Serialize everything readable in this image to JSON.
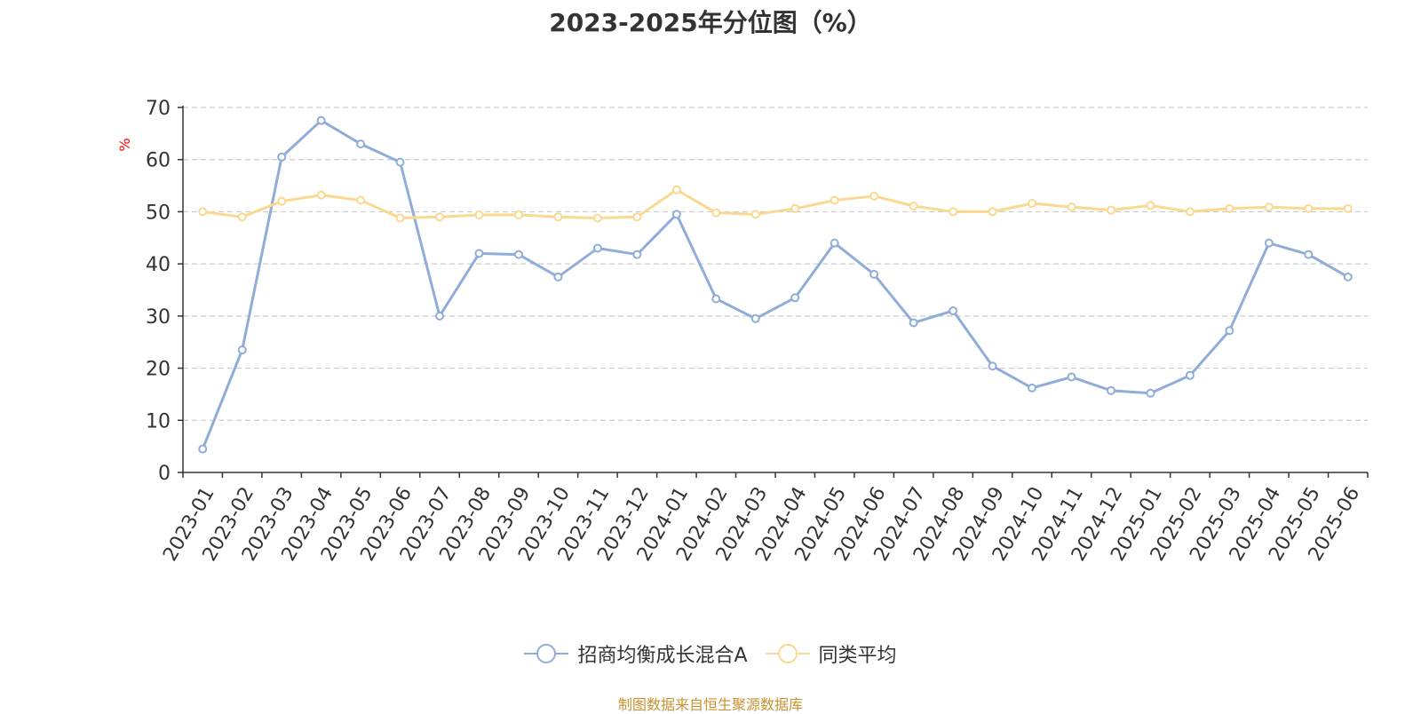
{
  "chart_data": {
    "type": "line",
    "title": "2023-2025年分位图（%）",
    "ylabel": "%",
    "xlabel": "",
    "ylim": [
      0,
      70
    ],
    "yticks": [
      0,
      10,
      20,
      30,
      40,
      50,
      60,
      70
    ],
    "grid": true,
    "legend_position": "bottom",
    "categories": [
      "2023-01",
      "2023-02",
      "2023-03",
      "2023-04",
      "2023-05",
      "2023-06",
      "2023-07",
      "2023-08",
      "2023-09",
      "2023-10",
      "2023-11",
      "2023-12",
      "2024-01",
      "2024-02",
      "2024-03",
      "2024-04",
      "2024-05",
      "2024-06",
      "2024-07",
      "2024-08",
      "2024-09",
      "2024-10",
      "2024-11",
      "2024-12",
      "2025-01",
      "2025-02",
      "2025-03",
      "2025-04",
      "2025-05",
      "2025-06"
    ],
    "series": [
      {
        "name": "招商均衡成长混合A",
        "color": "#8fadd9",
        "values": [
          4.5,
          23.5,
          60.5,
          67.5,
          63,
          59.5,
          30,
          42,
          41.8,
          37.5,
          43,
          41.8,
          49.5,
          33.3,
          29.5,
          33.5,
          44,
          38,
          28.7,
          31,
          20.4,
          16.2,
          18.3,
          15.7,
          15.2,
          18.6,
          27.2,
          44,
          41.8,
          37.5
        ]
      },
      {
        "name": "同类平均",
        "color": "#fbd88f",
        "values": [
          50,
          49,
          52,
          53.2,
          52.2,
          48.8,
          49,
          49.4,
          49.4,
          49,
          48.8,
          49,
          54.2,
          49.8,
          49.5,
          50.6,
          52.2,
          53,
          51.1,
          50,
          50,
          51.6,
          50.9,
          50.3,
          51.2,
          50,
          50.6,
          50.9,
          50.6,
          50.6
        ]
      }
    ]
  },
  "source_text": "制图数据来自恒生聚源数据库",
  "colors": {
    "axis": "#333333",
    "grid": "#cccccc",
    "ylabel": "#ff0000",
    "source": "#c8922f"
  }
}
